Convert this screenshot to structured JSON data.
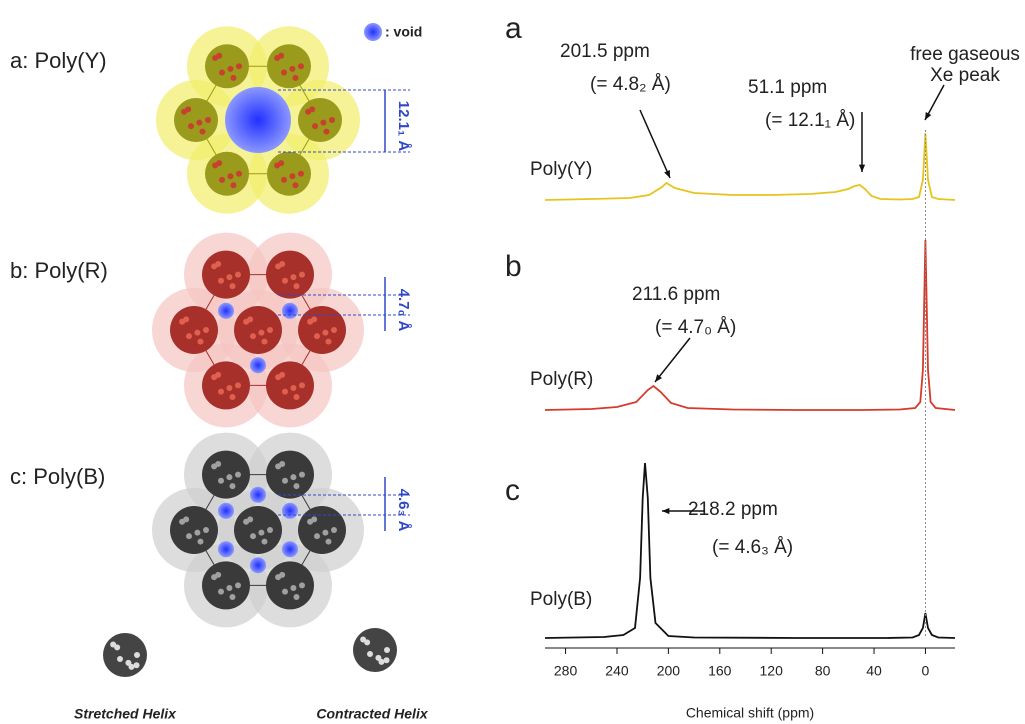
{
  "figure": {
    "void_legend": ": void",
    "panels": [
      {
        "label": "a: Poly(Y)",
        "dimension": "12.1₁ Å"
      },
      {
        "label": "b: Poly(R)",
        "dimension": "4.7₀ Å"
      },
      {
        "label": "c: Poly(B)",
        "dimension": "4.6₃ Å"
      }
    ],
    "helices": [
      "Stretched Helix",
      "Contracted Helix"
    ]
  },
  "chart_data": [
    {
      "type": "line",
      "panel_label": "a",
      "series_label": "Poly(Y)",
      "color": "#e6c41e",
      "xlim": [
        296,
        -23
      ],
      "ylim": [
        0,
        180
      ],
      "x": [
        296,
        260,
        230,
        215,
        205,
        201.5,
        195,
        180,
        150,
        120,
        90,
        70,
        60,
        55,
        51.1,
        47,
        42,
        35,
        20,
        10,
        5,
        2,
        0,
        -2,
        -5,
        -10,
        -23
      ],
      "values": [
        0,
        1,
        2,
        5,
        13,
        17,
        12,
        7,
        5,
        5,
        6,
        8,
        11,
        14,
        15,
        11,
        4,
        1,
        0.5,
        1,
        3,
        20,
        67,
        20,
        3,
        1,
        0
      ],
      "annotations": [
        "201.5 ppm",
        "(= 4.8₂ Å)",
        "51.1 ppm",
        "(= 12.1₁ Å)",
        "free gaseous",
        "Xe peak"
      ]
    },
    {
      "type": "line",
      "panel_label": "b",
      "series_label": "Poly(R)",
      "color": "#d53a2b",
      "xlim": [
        296,
        -23
      ],
      "ylim": [
        0,
        180
      ],
      "x": [
        296,
        260,
        240,
        225,
        216,
        211.6,
        206,
        198,
        185,
        150,
        100,
        50,
        20,
        8,
        4,
        2,
        0,
        -2,
        -4,
        -8,
        -23
      ],
      "values": [
        0,
        1,
        3,
        8,
        20,
        24,
        18,
        7,
        2,
        0.5,
        0,
        0,
        0.5,
        2,
        8,
        40,
        170,
        40,
        8,
        2,
        0
      ],
      "annotations": [
        "211.6 ppm",
        "(= 4.7₀ Å)"
      ]
    },
    {
      "type": "line",
      "panel_label": "c",
      "series_label": "Poly(B)",
      "color": "#111111",
      "xlim": [
        296,
        -23
      ],
      "ylim": [
        0,
        180
      ],
      "x": [
        296,
        250,
        235,
        226,
        222,
        220,
        218.2,
        216,
        214,
        210,
        200,
        180,
        100,
        30,
        10,
        5,
        2,
        0,
        -2,
        -5,
        -10,
        -23
      ],
      "values": [
        0,
        1,
        3,
        10,
        60,
        140,
        175,
        140,
        60,
        15,
        2,
        0.5,
        0,
        0,
        0.5,
        3,
        10,
        25,
        10,
        3,
        0.5,
        0
      ],
      "annotations": [
        "218.2 ppm",
        "(= 4.6₃ Å)"
      ],
      "xticks": [
        280,
        240,
        200,
        160,
        120,
        80,
        40,
        0
      ],
      "xlabel": "Chemical shift (ppm)"
    }
  ]
}
